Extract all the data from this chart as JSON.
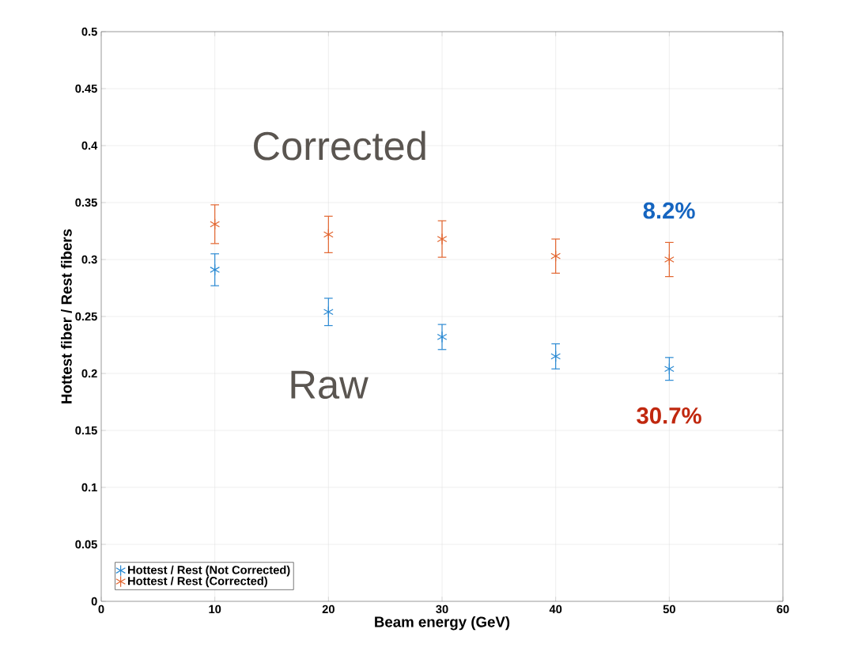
{
  "chart_data": {
    "type": "scatter",
    "xlabel": "Beam energy (GeV)",
    "ylabel": "Hottest fiber / Rest fibers",
    "x": [
      10,
      20,
      30,
      40,
      50
    ],
    "series": [
      {
        "name": "Hottest / Rest (Not Corrected)",
        "color": "#2b8ad3",
        "values": [
          0.291,
          0.254,
          0.232,
          0.215,
          0.204
        ],
        "errors": [
          0.014,
          0.012,
          0.011,
          0.011,
          0.01
        ]
      },
      {
        "name": "Hottest / Rest (Corrected)",
        "color": "#e2652f",
        "values": [
          0.331,
          0.322,
          0.318,
          0.303,
          0.3
        ],
        "errors": [
          0.017,
          0.016,
          0.016,
          0.015,
          0.015
        ]
      }
    ],
    "annotations": [
      "Corrected",
      "Raw",
      "8.2%",
      "30.7%"
    ],
    "xlim": [
      0,
      60
    ],
    "xticks": [
      0,
      10,
      20,
      30,
      40,
      50,
      60
    ],
    "ylim": [
      0,
      0.5
    ],
    "yticks": [
      0,
      0.05,
      0.1,
      0.15,
      0.2,
      0.25,
      0.3,
      0.35,
      0.4,
      0.45,
      0.5
    ],
    "grid": true,
    "legend": "bottom left",
    "marker": "cross"
  }
}
